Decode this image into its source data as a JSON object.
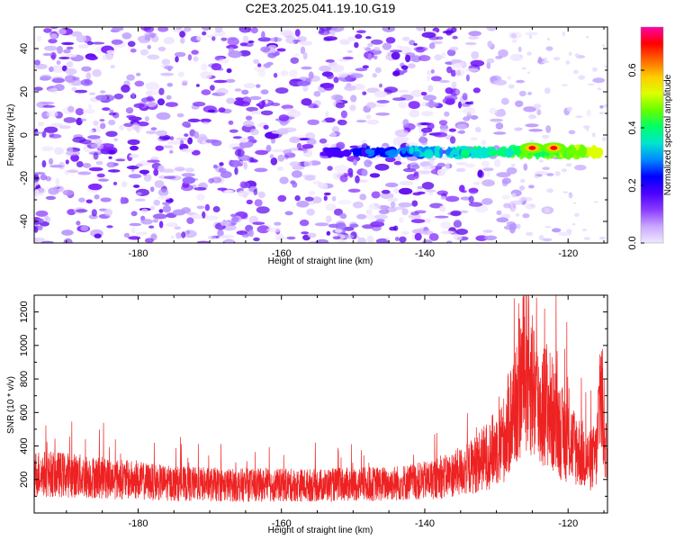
{
  "title": "C2E3.2025.041.19.10.G19",
  "colors": {
    "snr_line": "#ee2222",
    "frame": "#000000",
    "spectrogram_noise": "#7a1cff",
    "colormap": [
      "#f0e8ff",
      "#c9a8ff",
      "#8a3bff",
      "#4a00ff",
      "#0000ff",
      "#0088ff",
      "#00e5d0",
      "#00ff66",
      "#66ff00",
      "#ddff00",
      "#ffcc00",
      "#ff6600",
      "#ff0000",
      "#ff00aa"
    ]
  },
  "chart_data": [
    {
      "type": "heatmap",
      "title": "C2E3.2025.041.19.10.G19",
      "xlabel": "Height of straight line (km)",
      "ylabel": "Frequency (Hz)",
      "xlim": [
        -194.5,
        -114.5
      ],
      "ylim": [
        -50,
        50
      ],
      "x_ticks": [
        -180,
        -160,
        -140,
        -120
      ],
      "y_ticks": [
        -40,
        -20,
        0,
        20,
        40
      ],
      "colorbar": {
        "label": "Normalized spectral amplitude",
        "range": [
          0,
          0.75
        ],
        "ticks": [
          0.0,
          0.2,
          0.4,
          0.6
        ]
      },
      "features": [
        {
          "x_range": [
            -194.5,
            -128
          ],
          "freq_range": [
            -50,
            50
          ],
          "level": 0.1
        },
        {
          "x_range": [
            -154,
            -114.5
          ],
          "freq": -8,
          "level": 0.35
        },
        {
          "x_range": [
            -127,
            -121
          ],
          "freq": -6,
          "level": 0.72
        }
      ]
    },
    {
      "type": "line",
      "xlabel": "Height of straight line (km)",
      "ylabel": "SNR (10 * v/v)",
      "xlim": [
        -194.5,
        -114.5
      ],
      "ylim": [
        0,
        1300
      ],
      "x_ticks": [
        -180,
        -160,
        -140,
        -120
      ],
      "y_ticks": [
        200,
        400,
        600,
        800,
        1000,
        1200
      ],
      "envelope": {
        "x": [
          -194,
          -190,
          -185,
          -180,
          -175,
          -170,
          -165,
          -160,
          -155,
          -150,
          -145,
          -140,
          -137,
          -134,
          -131,
          -129,
          -127,
          -126,
          -125,
          -124,
          -123,
          -122,
          -121,
          -120,
          -119,
          -118,
          -117,
          -116,
          -115.5,
          -115,
          -114.5
        ],
        "y": [
          270,
          260,
          240,
          220,
          200,
          195,
          190,
          190,
          190,
          195,
          200,
          220,
          250,
          300,
          400,
          500,
          800,
          1000,
          900,
          700,
          750,
          650,
          550,
          500,
          450,
          400,
          350,
          400,
          900,
          600,
          300
        ]
      }
    }
  ]
}
